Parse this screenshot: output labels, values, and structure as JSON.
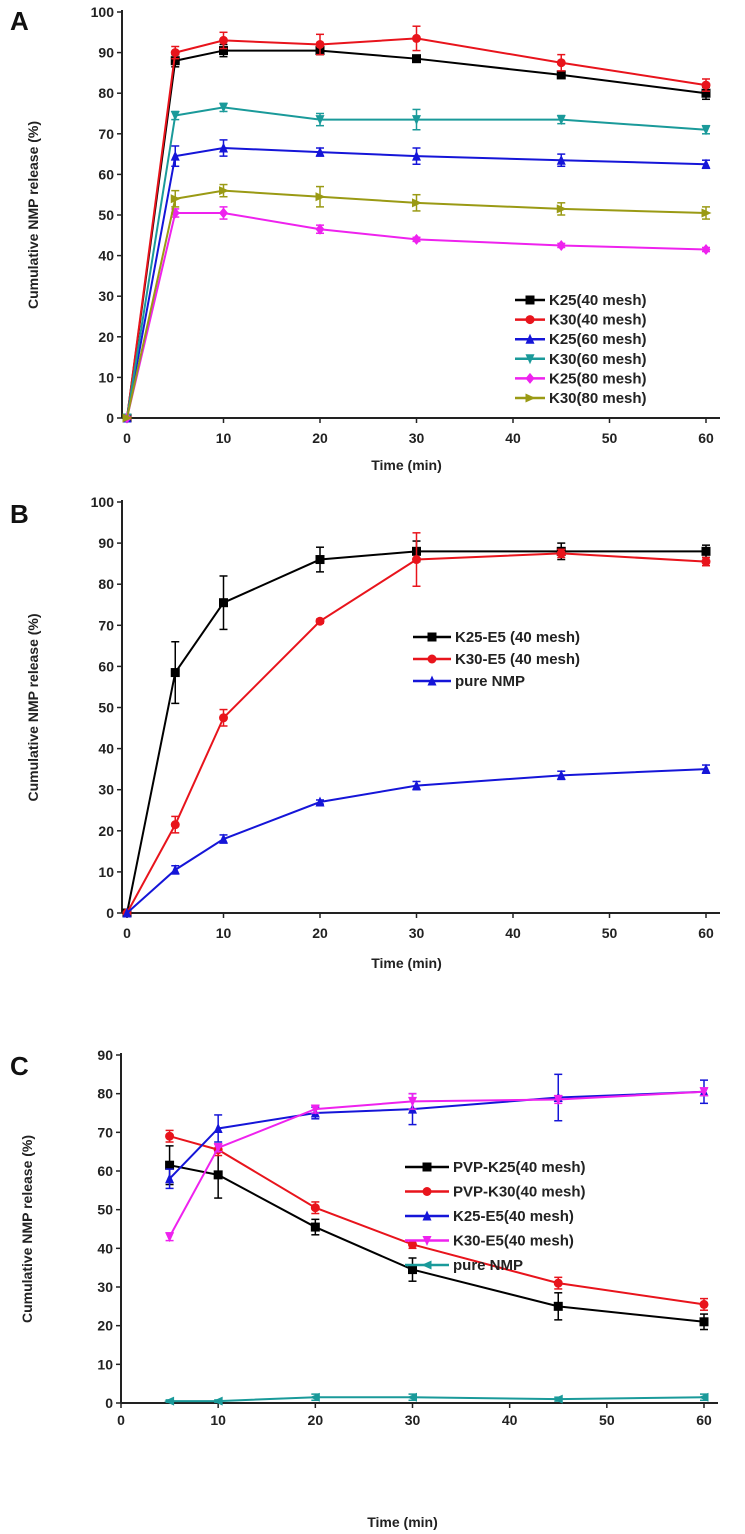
{
  "chart_data": [
    {
      "type": "line",
      "panel_label": "A",
      "xlabel": "Time (min)",
      "ylabel": "Cumulative NMP release (%)",
      "xlim": [
        0,
        60
      ],
      "ylim": [
        0,
        100
      ],
      "xticks": [
        0,
        10,
        20,
        30,
        40,
        50,
        60
      ],
      "yticks": [
        0,
        10,
        20,
        30,
        40,
        50,
        60,
        70,
        80,
        90,
        100
      ],
      "legend_position": "bottom-right",
      "x": [
        0,
        5,
        10,
        20,
        30,
        45,
        60
      ],
      "series": [
        {
          "name": "K25(40 mesh)",
          "color": "#000000",
          "marker": "square",
          "values": [
            0,
            88,
            90.5,
            90.5,
            88.5,
            84.5,
            80
          ],
          "errors": [
            0,
            1.5,
            1.5,
            1,
            0.5,
            0.5,
            1.5
          ]
        },
        {
          "name": "K30(40 mesh)",
          "color": "#e8141c",
          "marker": "circle",
          "values": [
            0,
            90,
            93,
            92,
            93.5,
            87.5,
            82
          ],
          "errors": [
            0,
            1.5,
            2,
            2.5,
            3,
            2,
            1.5
          ]
        },
        {
          "name": "K25(60 mesh)",
          "color": "#1515d8",
          "marker": "triangle-up",
          "values": [
            0,
            64.5,
            66.5,
            65.5,
            64.5,
            63.5,
            62.5
          ],
          "errors": [
            0,
            2.5,
            2,
            1,
            2,
            1.5,
            1
          ]
        },
        {
          "name": "K30(60 mesh)",
          "color": "#1a9a9a",
          "marker": "triangle-down",
          "values": [
            0,
            74.5,
            76.5,
            73.5,
            73.5,
            73.5,
            71
          ],
          "errors": [
            0,
            1,
            1,
            1.5,
            2.5,
            1,
            1
          ]
        },
        {
          "name": "K25(80 mesh)",
          "color": "#ee22ee",
          "marker": "diamond",
          "values": [
            0,
            50.5,
            50.5,
            46.5,
            44,
            42.5,
            41.5
          ],
          "errors": [
            0,
            1,
            1.5,
            1,
            0.5,
            0.5,
            0.5
          ]
        },
        {
          "name": "K30(80 mesh)",
          "color": "#9a9a14",
          "marker": "triangle-right",
          "values": [
            0,
            54,
            56,
            54.5,
            53,
            51.5,
            50.5
          ],
          "errors": [
            0,
            2,
            1.5,
            2.5,
            2,
            1.5,
            1.5
          ]
        }
      ]
    },
    {
      "type": "line",
      "panel_label": "B",
      "xlabel": "Time (min)",
      "ylabel": "Cumulative NMP release (%)",
      "xlim": [
        0,
        60
      ],
      "ylim": [
        0,
        100
      ],
      "xticks": [
        0,
        10,
        20,
        30,
        40,
        50,
        60
      ],
      "yticks": [
        0,
        10,
        20,
        30,
        40,
        50,
        60,
        70,
        80,
        90,
        100
      ],
      "legend_position": "center-right",
      "x": [
        0,
        5,
        10,
        20,
        30,
        45,
        60
      ],
      "series": [
        {
          "name": "K25-E5 (40 mesh)",
          "color": "#000000",
          "marker": "square",
          "values": [
            0,
            58.5,
            75.5,
            86,
            88,
            88,
            88
          ],
          "errors": [
            0,
            7.5,
            6.5,
            3,
            2.5,
            2,
            1.5
          ]
        },
        {
          "name": "K30-E5 (40 mesh)",
          "color": "#e8141c",
          "marker": "circle",
          "values": [
            0,
            21.5,
            47.5,
            71,
            86,
            87.5,
            85.5
          ],
          "errors": [
            0,
            2,
            2,
            0.5,
            6.5,
            1,
            1
          ]
        },
        {
          "name": "pure NMP",
          "color": "#1515d8",
          "marker": "triangle-up",
          "values": [
            0,
            10.5,
            18,
            27,
            31,
            33.5,
            35
          ],
          "errors": [
            0,
            1,
            1,
            0.5,
            1,
            1,
            1
          ]
        }
      ]
    },
    {
      "type": "line",
      "panel_label": "C",
      "xlabel": "Time (min)",
      "ylabel": "Cumulative NMP release (%)",
      "xlim": [
        0,
        60
      ],
      "ylim": [
        0,
        90
      ],
      "xticks": [
        0,
        10,
        20,
        30,
        40,
        50,
        60
      ],
      "yticks": [
        0,
        10,
        20,
        30,
        40,
        50,
        60,
        70,
        80,
        90
      ],
      "legend_position": "center-right",
      "x": [
        5,
        10,
        20,
        30,
        45,
        60
      ],
      "series": [
        {
          "name": "PVP-K25(40 mesh)",
          "color": "#000000",
          "marker": "square",
          "values": [
            61.5,
            59,
            45.5,
            34.5,
            25,
            21
          ],
          "errors": [
            5,
            6,
            2,
            3,
            3.5,
            2
          ]
        },
        {
          "name": "PVP-K30(40 mesh)",
          "color": "#e8141c",
          "marker": "circle",
          "values": [
            69,
            65.5,
            50.5,
            41,
            31,
            25.5
          ],
          "errors": [
            1.5,
            1.5,
            1.5,
            1,
            1.5,
            1.5
          ]
        },
        {
          "name": "K25-E5(40 mesh)",
          "color": "#1515d8",
          "marker": "triangle-up",
          "values": [
            58,
            71,
            75,
            76,
            79,
            80.5
          ],
          "errors": [
            2.5,
            3.5,
            1.5,
            4,
            6,
            3
          ]
        },
        {
          "name": "K30-E5(40 mesh)",
          "color": "#ee22ee",
          "marker": "triangle-down",
          "values": [
            43,
            66,
            76,
            78,
            78.5,
            80.5
          ],
          "errors": [
            1,
            1,
            1,
            2,
            1,
            1
          ]
        },
        {
          "name": "pure NMP",
          "color": "#1a9a9a",
          "marker": "triangle-left",
          "values": [
            0.5,
            0.5,
            1.5,
            1.5,
            1,
            1.5
          ],
          "errors": [
            0.3,
            0.3,
            0.8,
            0.8,
            0.5,
            0.8
          ]
        }
      ]
    }
  ]
}
